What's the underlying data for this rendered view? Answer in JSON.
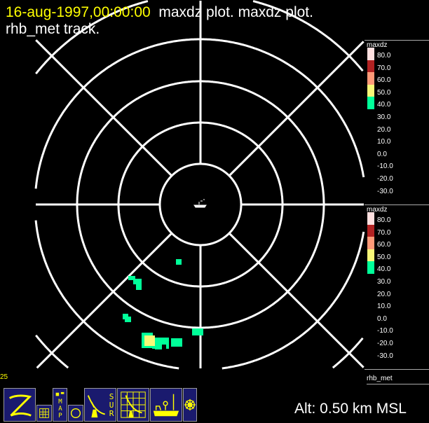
{
  "title": {
    "datetime": "16-aug-1997,00:00:00",
    "plot_desc": "maxdz plot.  maxdz plot.",
    "line2": "rhb_met track."
  },
  "colors": {
    "datetime": "#ffff00",
    "rings": "#ffffff",
    "accent": "#ffff00",
    "button_bg": "#1a1a6e"
  },
  "legends": [
    {
      "field": "maxdz",
      "labels": [
        "80.0",
        "70.0",
        "60.0",
        "50.0",
        "40.0",
        "30.0",
        "20.0",
        "10.0",
        "0.0",
        "-10.0",
        "-20.0",
        "-30.0"
      ],
      "swatches": [
        "#ffe0e0",
        "#b22222",
        "#ff9a78",
        "#f8f878",
        "#00ff99"
      ]
    },
    {
      "field": "maxdz",
      "labels": [
        "80.0",
        "70.0",
        "60.0",
        "50.0",
        "40.0",
        "30.0",
        "20.0",
        "10.0",
        "0.0",
        "-10.0",
        "-20.0",
        "-30.0"
      ],
      "swatches": [
        "#ffe0e0",
        "#b22222",
        "#ff9a78",
        "#f8f878",
        "#00ff99"
      ]
    }
  ],
  "track_label": "rhb_met",
  "range_label": "25",
  "altitude": "Alt: 0.50 km MSL",
  "buttons": [
    {
      "name": "zebra-icon"
    },
    {
      "name": "grid-icon"
    },
    {
      "name": "map-icon",
      "text": "MAP"
    },
    {
      "name": "circle-icon"
    },
    {
      "name": "radar-surveillance-icon",
      "text": "SUR"
    },
    {
      "name": "radar-grid-icon"
    },
    {
      "name": "ship-icon"
    },
    {
      "name": "wheel-icon"
    }
  ]
}
